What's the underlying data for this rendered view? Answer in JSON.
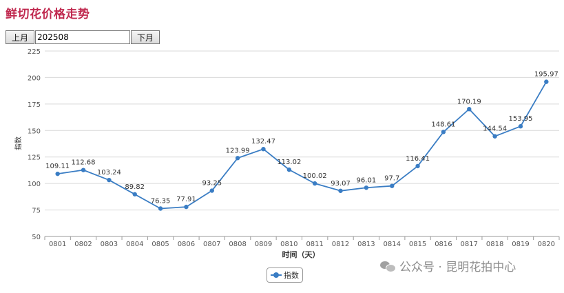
{
  "page": {
    "title": "鲜切花价格走势"
  },
  "controls": {
    "prev_label": "上月",
    "month_value": "202508",
    "next_label": "下月"
  },
  "watermark": {
    "icon": "wechat-icon",
    "text": "公众号 · 昆明花拍中心"
  },
  "colors": {
    "series": "#3a7dc4",
    "title": "#c0294f",
    "grid": "#d9d9d9"
  },
  "chart_data": {
    "type": "line",
    "title": "鲜切花价格走势",
    "xlabel": "时间（天）",
    "ylabel": "指数",
    "ylim": [
      50,
      225
    ],
    "yticks": [
      50,
      75,
      100,
      125,
      150,
      175,
      200,
      225
    ],
    "grid": true,
    "legend": "bottom-center",
    "categories": [
      "0801",
      "0802",
      "0803",
      "0804",
      "0805",
      "0806",
      "0807",
      "0808",
      "0809",
      "0810",
      "0811",
      "0812",
      "0813",
      "0814",
      "0815",
      "0816",
      "0817",
      "0818",
      "0819",
      "0820"
    ],
    "series": [
      {
        "name": "指数",
        "values": [
          109.11,
          112.68,
          103.24,
          89.82,
          76.35,
          77.91,
          93.25,
          123.99,
          132.47,
          113.02,
          100.02,
          93.07,
          96.01,
          97.7,
          116.41,
          148.61,
          170.19,
          144.54,
          153.95,
          195.97
        ],
        "labels": [
          "109.11",
          "112.68",
          "103.24",
          "89.82",
          "76.35",
          "77.91",
          "93.25",
          "123.99",
          "132.47",
          "113.02",
          "100.02",
          "93.07",
          "96.01",
          "97.7",
          "116.41",
          "148.61",
          "170.19",
          "144.54",
          "153.95",
          "195.97"
        ]
      }
    ]
  }
}
